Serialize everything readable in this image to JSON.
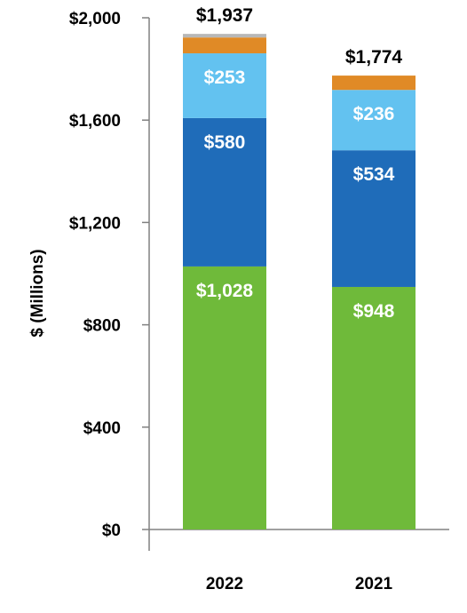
{
  "chart_data": {
    "type": "bar",
    "stacked": true,
    "categories": [
      "2022",
      "2021"
    ],
    "ylabel": "$ (Millions)",
    "ylim": [
      0,
      2000
    ],
    "yticks": [
      0,
      400,
      800,
      1200,
      1600,
      2000
    ],
    "ytick_labels": [
      "$0",
      "$400",
      "$800",
      "$1,200",
      "$1,600",
      "$2,000"
    ],
    "series": [
      {
        "color": "#6fba3a",
        "values": [
          1028,
          948
        ],
        "labels": [
          "$1,028",
          "$948"
        ]
      },
      {
        "color": "#1f6cb9",
        "values": [
          580,
          534
        ],
        "labels": [
          "$580",
          "$534"
        ]
      },
      {
        "color": "#63c2f0",
        "values": [
          253,
          236
        ],
        "labels": [
          "$253",
          "$236"
        ]
      },
      {
        "color": "#e08a26",
        "values": [
          62,
          56
        ],
        "labels": [
          "",
          ""
        ]
      },
      {
        "color": "#b8b8b8",
        "values": [
          14,
          0
        ],
        "labels": [
          "",
          ""
        ]
      }
    ],
    "totals": [
      1937,
      1774
    ],
    "total_labels": [
      "$1,937",
      "$1,774"
    ],
    "grid": false,
    "legend": "none"
  }
}
